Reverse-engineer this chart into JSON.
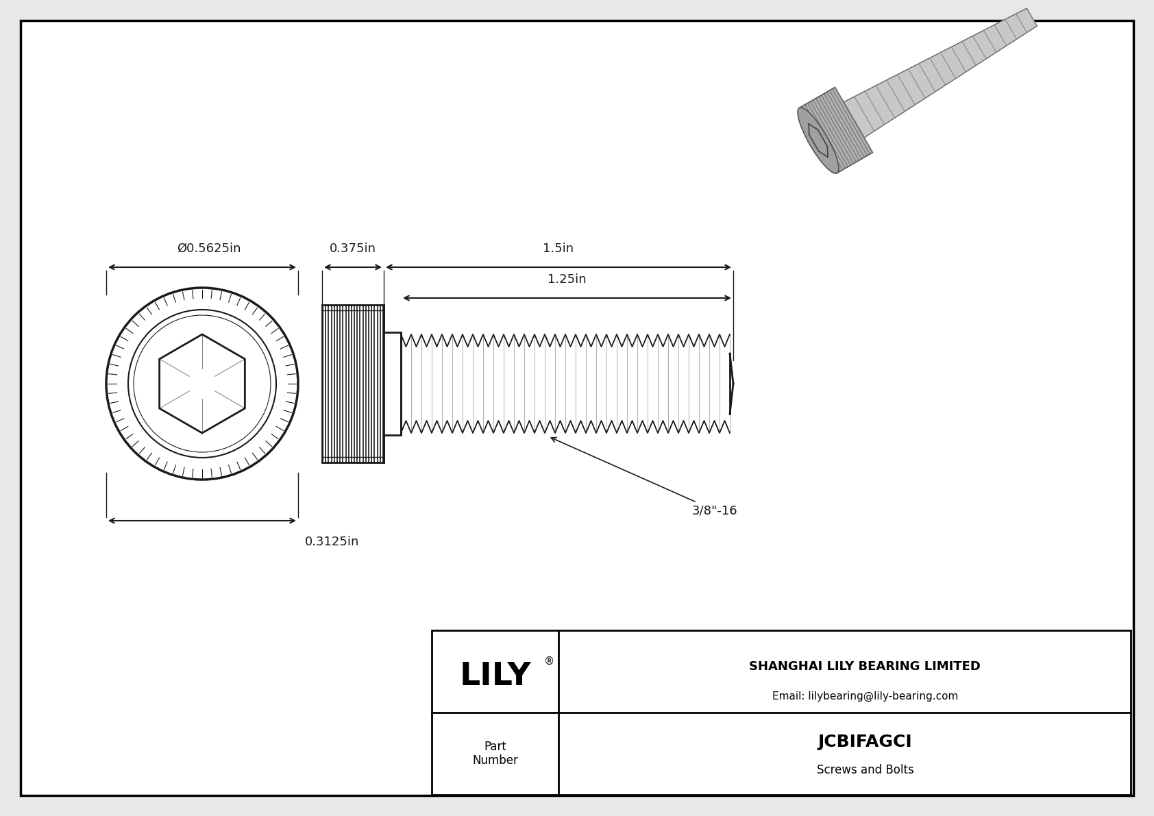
{
  "bg_color": "#e8e8e8",
  "drawing_bg": "#ffffff",
  "border_color": "#000000",
  "line_color": "#1a1a1a",
  "dim_color": "#1a1a1a",
  "title": "JCBIFAGCI",
  "subtitle": "Screws and Bolts",
  "company": "SHANGHAI LILY BEARING LIMITED",
  "email": "Email: lilybearing@lily-bearing.com",
  "part_label": "Part\nNumber",
  "dim_diameter": "Ø0.5625in",
  "dim_head_height": "0.3125in",
  "dim_head_length": "0.375in",
  "dim_total_length": "1.5in",
  "dim_thread_length": "1.25in",
  "dim_thread_label": "3/8\"-16",
  "font_size_dim": 13,
  "font_size_title": 18,
  "font_size_company": 13,
  "font_size_part": 12
}
